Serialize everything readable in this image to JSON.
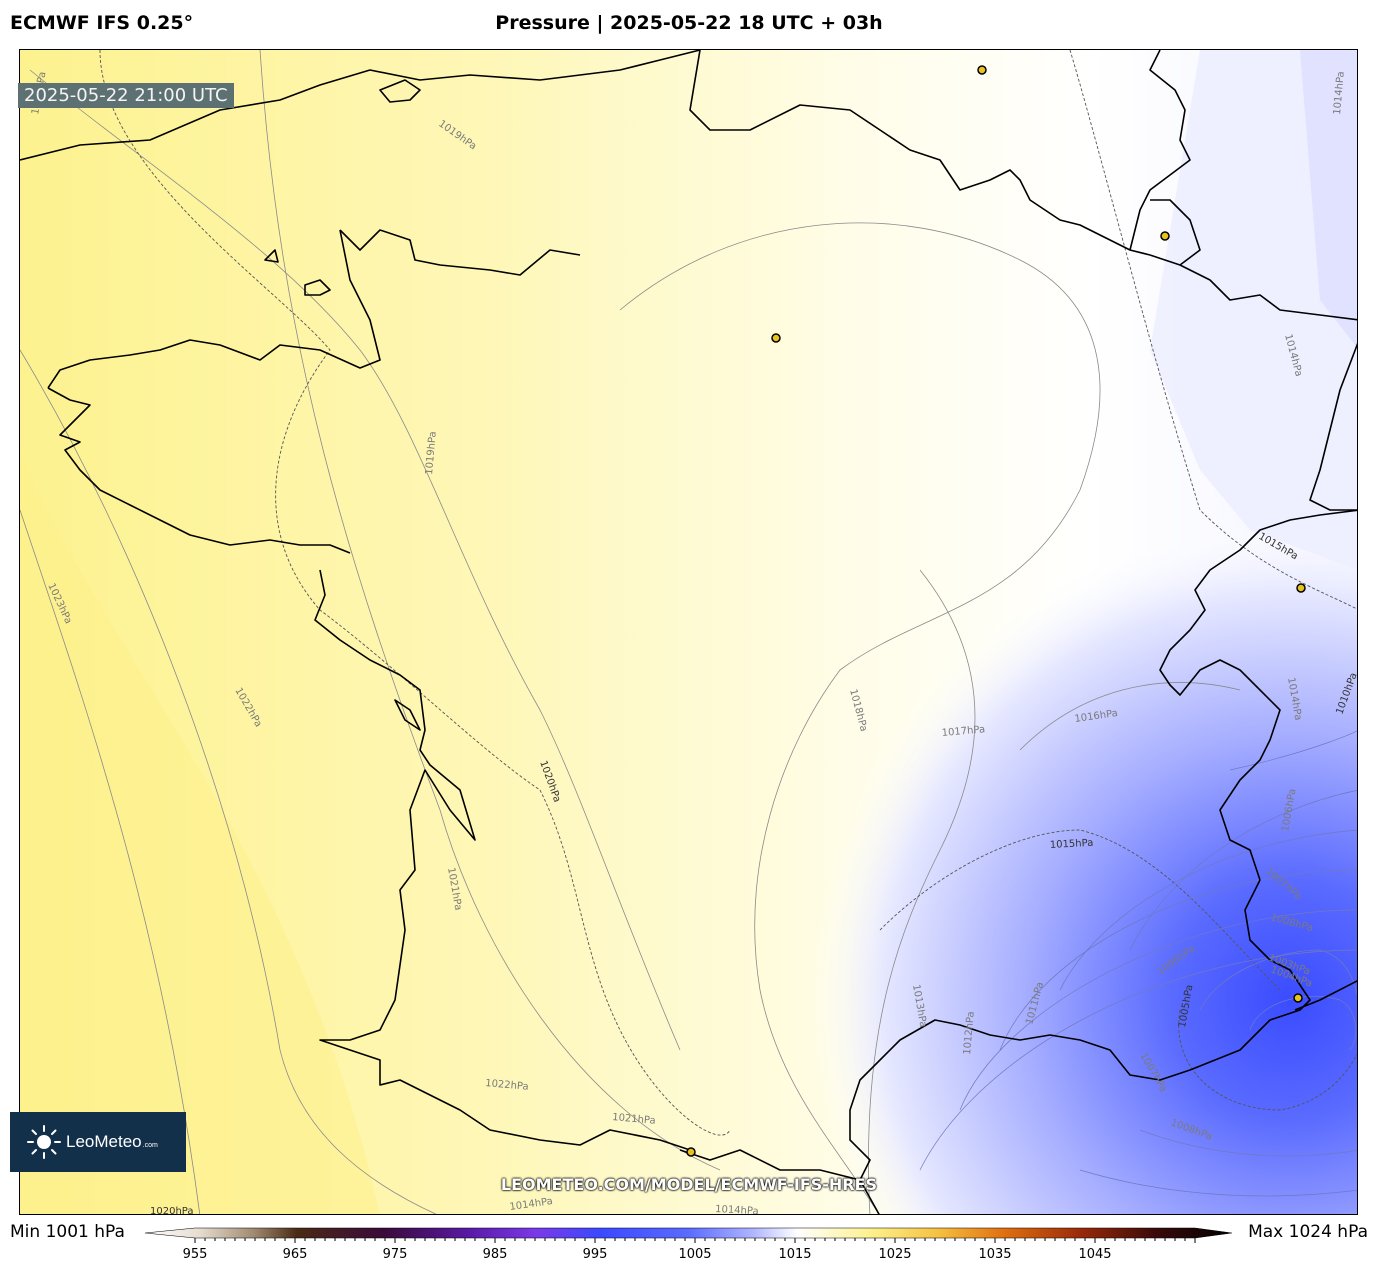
{
  "header": {
    "model": "ECMWF IFS 0.25°",
    "title": "Pressure | 2025-05-22 18 UTC + 03h"
  },
  "map": {
    "valid_time": "2025-05-22 21:00 UTC",
    "watermark": "LEOMETEO.COM/MODEL/ECMWF-IFS-HRES",
    "logo": {
      "name": "LeoMeteo",
      "suffix": ".com"
    },
    "contour_labels": [
      {
        "id": "c1019a",
        "text": "1019hPa"
      },
      {
        "id": "c1019b",
        "text": "1019hPa"
      },
      {
        "id": "c1019c",
        "text": "1019hPa"
      },
      {
        "id": "c1014a",
        "text": "1014hPa"
      },
      {
        "id": "c1014b",
        "text": "1014hPa"
      },
      {
        "id": "c1015a",
        "text": "1015hPa"
      },
      {
        "id": "c1023",
        "text": "1023hPa"
      },
      {
        "id": "c1022a",
        "text": "1022hPa"
      },
      {
        "id": "c1020a",
        "text": "1020hPa"
      },
      {
        "id": "c1018",
        "text": "1018hPa"
      },
      {
        "id": "c1017",
        "text": "1017hPa"
      },
      {
        "id": "c1016",
        "text": "1016hPa"
      },
      {
        "id": "c1014c",
        "text": "1014hPa"
      },
      {
        "id": "c1010",
        "text": "1010hPa"
      },
      {
        "id": "c1006a",
        "text": "1006hPa"
      },
      {
        "id": "c1007a",
        "text": "1007hPa"
      },
      {
        "id": "c1015b",
        "text": "1015hPa"
      },
      {
        "id": "c1021a",
        "text": "1021hPa"
      },
      {
        "id": "c1008a",
        "text": "1008hPa"
      },
      {
        "id": "c1006b",
        "text": "1006hPa"
      },
      {
        "id": "c1003",
        "text": "1003hPa"
      },
      {
        "id": "c1004",
        "text": "1004hPa"
      },
      {
        "id": "c1005",
        "text": "1005hPa"
      },
      {
        "id": "c1013",
        "text": "1013hPa"
      },
      {
        "id": "c1011",
        "text": "1011hPa"
      },
      {
        "id": "c1012",
        "text": "1012hPa"
      },
      {
        "id": "c1007b",
        "text": "1007hPa"
      },
      {
        "id": "c1008b",
        "text": "1008hPa"
      },
      {
        "id": "c1022b",
        "text": "1022hPa"
      },
      {
        "id": "c1021b",
        "text": "1021hPa"
      },
      {
        "id": "c1014d",
        "text": "1014hPa"
      },
      {
        "id": "c1014e",
        "text": "1014hPa"
      },
      {
        "id": "c1020b",
        "text": "1020hPa"
      }
    ]
  },
  "legend": {
    "min_label": "Min 1001 hPa",
    "max_label": "Max 1024 hPa",
    "ticks": [
      "955",
      "965",
      "975",
      "985",
      "995",
      "1005",
      "1015",
      "1025",
      "1035",
      "1045"
    ]
  },
  "colors": {
    "high_pressure": "#fdf08a",
    "neutral": "#ffffff",
    "low_pressure": "#4a5cff",
    "city_marker": "#e8c31c"
  }
}
